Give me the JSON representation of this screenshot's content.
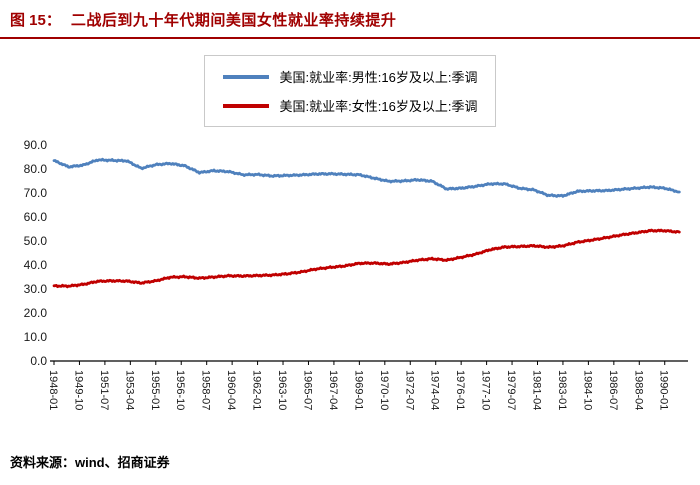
{
  "header": {
    "figure_label": "图 15：",
    "title": "二战后到九十年代期间美国女性就业率持续提升"
  },
  "footer": {
    "label": "资料来源：",
    "value": "wind、招商证券"
  },
  "colors": {
    "title_red": "#A00000",
    "male_blue": "#4F81BD",
    "female_red": "#C00000",
    "axis": "#000000",
    "legend_border": "#c9c9c9"
  },
  "chart_data": {
    "type": "line",
    "title": "二战后到九十年代期间美国女性就业率持续提升",
    "x_years": [
      1948,
      1949,
      1950,
      1951,
      1952,
      1953,
      1954,
      1955,
      1956,
      1957,
      1958,
      1959,
      1960,
      1961,
      1962,
      1963,
      1964,
      1965,
      1966,
      1967,
      1968,
      1969,
      1970,
      1971,
      1972,
      1973,
      1974,
      1975,
      1976,
      1977,
      1978,
      1979,
      1980,
      1981,
      1982,
      1983,
      1984,
      1985,
      1986,
      1987,
      1988,
      1989,
      1990,
      1991
    ],
    "series": [
      {
        "name": "美国:就业率:男性:16岁及以上:季调",
        "color": "#4F81BD",
        "values": [
          83.5,
          80.9,
          81.6,
          83.8,
          83.6,
          83.4,
          80.3,
          81.8,
          82.3,
          81.3,
          78.5,
          79.3,
          78.9,
          77.6,
          77.7,
          77.1,
          77.3,
          77.5,
          77.9,
          78.0,
          77.8,
          77.6,
          76.2,
          74.9,
          75.0,
          75.5,
          74.9,
          71.7,
          72.0,
          72.8,
          73.8,
          73.8,
          72.0,
          71.3,
          69.0,
          68.8,
          70.7,
          70.9,
          71.0,
          71.5,
          72.0,
          72.5,
          72.0,
          70.4
        ]
      },
      {
        "name": "美国:就业率:女性:16岁及以上:季调",
        "color": "#C00000",
        "values": [
          31.3,
          31.2,
          31.9,
          33.2,
          33.4,
          33.3,
          32.5,
          33.4,
          34.9,
          35.1,
          34.5,
          35.0,
          35.5,
          35.4,
          35.6,
          35.8,
          36.3,
          37.1,
          38.3,
          39.0,
          39.6,
          40.7,
          40.8,
          40.4,
          41.0,
          42.0,
          42.6,
          42.0,
          43.2,
          44.5,
          46.4,
          47.5,
          47.7,
          48.0,
          47.4,
          48.0,
          49.5,
          50.4,
          51.4,
          52.5,
          53.4,
          54.3,
          54.3,
          53.7
        ]
      }
    ],
    "ylim": [
      0,
      90
    ],
    "ytick_step": 10,
    "ytick_labels": [
      "0.0",
      "10.0",
      "20.0",
      "30.0",
      "40.0",
      "50.0",
      "60.0",
      "70.0",
      "80.0",
      "90.0"
    ],
    "xtick_labels": [
      "1948-01",
      "1949-10",
      "1951-07",
      "1953-04",
      "1955-01",
      "1956-10",
      "1958-07",
      "1960-04",
      "1962-01",
      "1963-10",
      "1965-07",
      "1967-04",
      "1969-01",
      "1970-10",
      "1972-07",
      "1974-04",
      "1976-01",
      "1977-10",
      "1979-07",
      "1981-04",
      "1983-01",
      "1984-10",
      "1986-07",
      "1988-04",
      "1990-01"
    ],
    "xtick_interval_months": 21,
    "grid": false,
    "legend_position": "top-center"
  }
}
